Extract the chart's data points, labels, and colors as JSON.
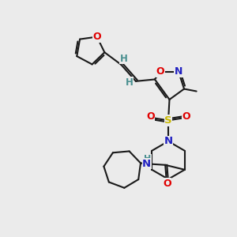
{
  "background_color": "#ebebeb",
  "atom_colors": {
    "C": "#000000",
    "H": "#4a9090",
    "N": "#2020c0",
    "O": "#e00000",
    "S": "#c8b800",
    "default": "#000000"
  },
  "bond_color": "#1a1a1a",
  "bond_width": 1.5,
  "figsize": [
    3.0,
    3.0
  ],
  "dpi": 100,
  "xlim": [
    0,
    10
  ],
  "ylim": [
    0,
    10
  ]
}
